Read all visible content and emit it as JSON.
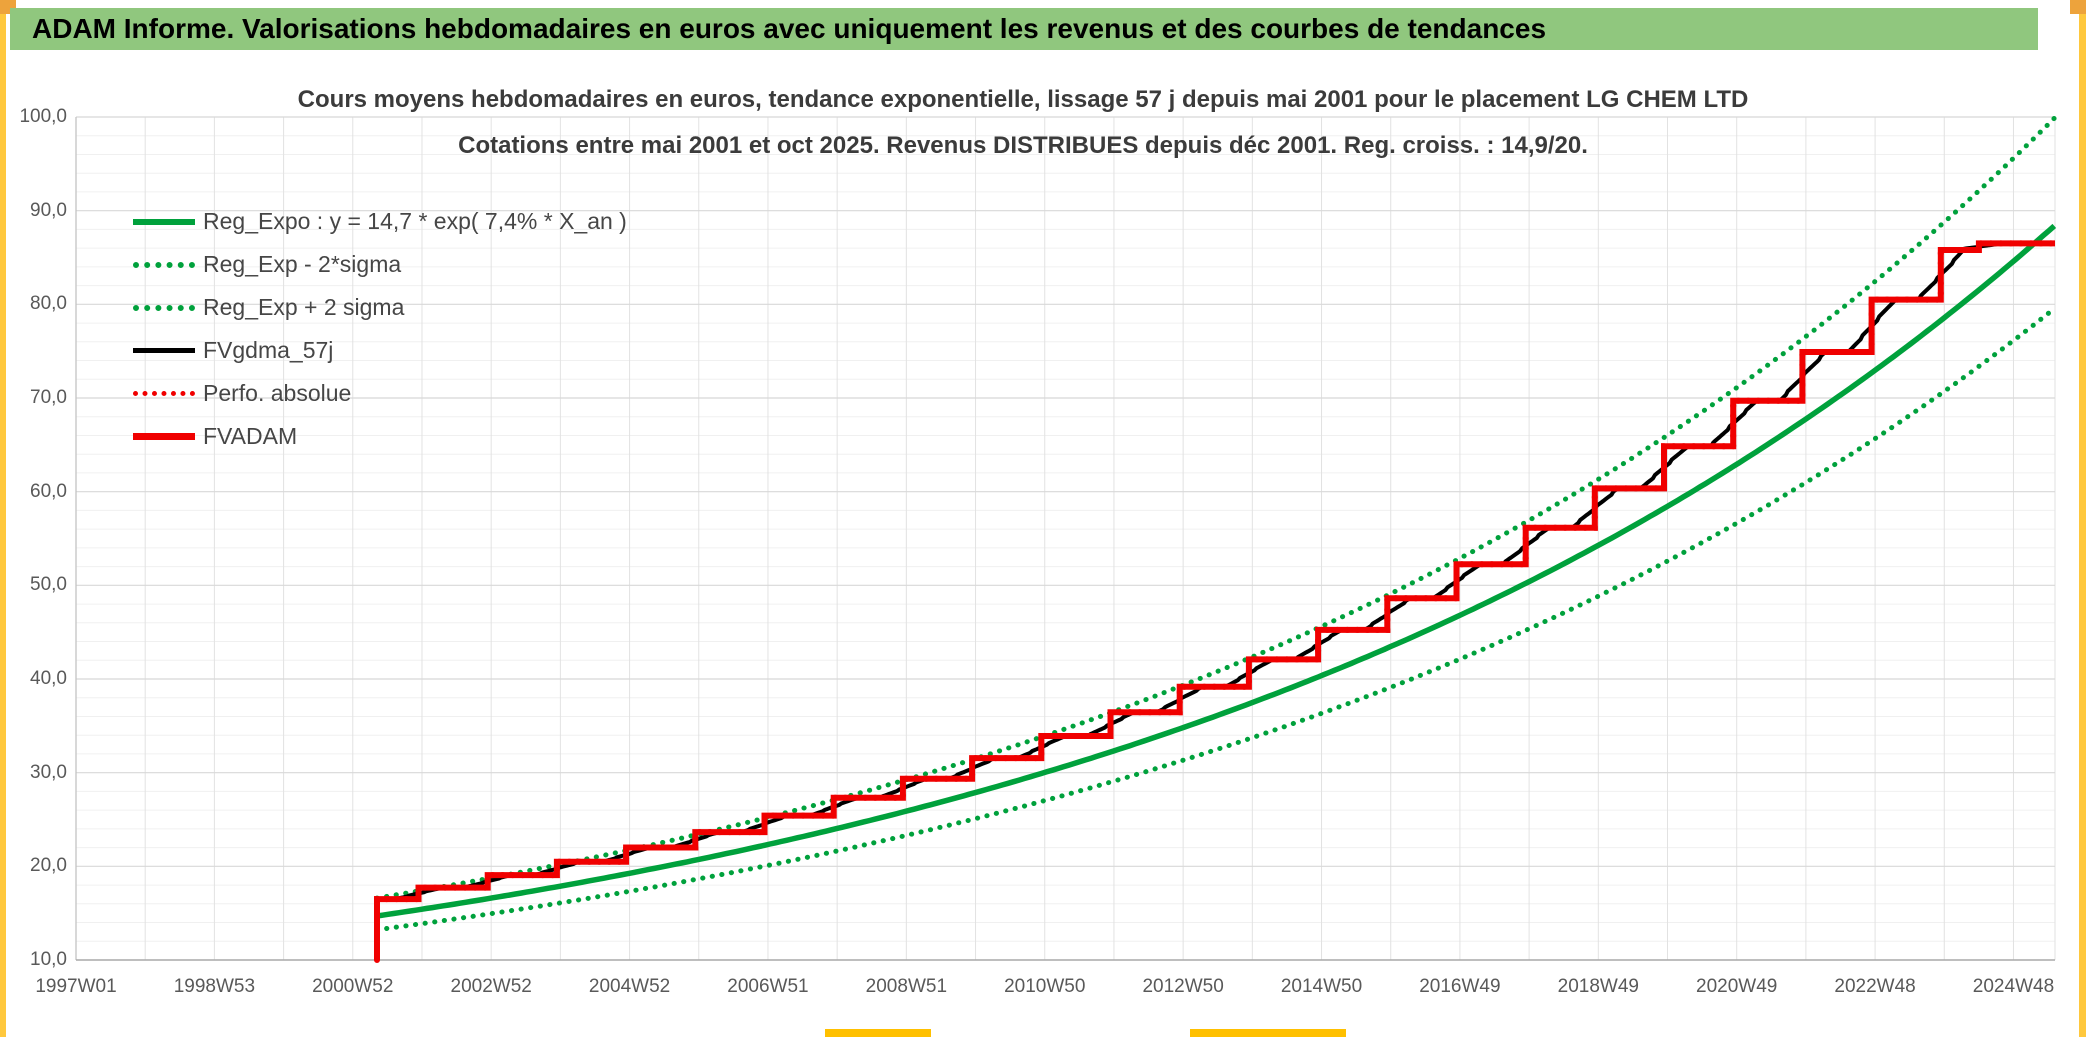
{
  "header": {
    "title": "ADAM Informe. Valorisations hebdomadaires en euros avec uniquement les revenus et des courbes de tendances",
    "bar_color": "#90C77E"
  },
  "frame": {
    "side_strip_color": "#FFC83D",
    "corner_color": "#EDA33C",
    "bottom_segment_color": "#FFC000"
  },
  "chart_data": {
    "type": "line",
    "title": "Cours moyens hebdomadaires en euros, tendance exponentielle, lissage 57 j depuis mai 2001 pour le placement LG CHEM LTD",
    "subtitle": "Cotations entre mai 2001 et oct 2025. Revenus DISTRIBUES depuis déc 2001. Reg. croiss. : 14,9/20.",
    "colors": {
      "green": "#00A13C",
      "red": "#F00000",
      "black": "#000000",
      "grid_major": "#D8D8D8",
      "grid_minor": "#F0F0F0",
      "grid_vertical": "#E2E2E2",
      "axis": "#ABABAB",
      "tick_text": "#595959",
      "title_text": "#3B3B3B"
    },
    "x_axis": {
      "t_min": 1997.0,
      "t_max": 2025.6,
      "tick_years": [
        1997,
        1999,
        2001,
        2003,
        2005,
        2007,
        2009,
        2011,
        2013,
        2015,
        2017,
        2019,
        2021,
        2023,
        2025
      ],
      "tick_labels": [
        "1997W01",
        "1998W53",
        "2000W52",
        "2002W52",
        "2004W52",
        "2006W51",
        "2008W51",
        "2010W50",
        "2012W50",
        "2014W50",
        "2016W49",
        "2018W49",
        "2020W49",
        "2022W48",
        "2024W48"
      ]
    },
    "y_axis": {
      "min": 10,
      "max": 100,
      "major_step": 10,
      "minor_step": 2,
      "tick_values": [
        100,
        90,
        80,
        70,
        60,
        50,
        40,
        30,
        20,
        10
      ],
      "tick_labels": [
        "100,0",
        "90,0",
        "80,0",
        "70,0",
        "60,0",
        "50,0",
        "40,0",
        "30,0",
        "20,0",
        "10,0"
      ]
    },
    "legend": [
      {
        "label": "Reg_Expo : y = 14,7 * exp( 7,4% *  X_an )",
        "swatch": "green-solid"
      },
      {
        "label": "Reg_Exp - 2*sigma",
        "swatch": "green-dot"
      },
      {
        "label": "Reg_Exp + 2 sigma",
        "swatch": "green-dot"
      },
      {
        "label": "FVgdma_57j",
        "swatch": "black-solid"
      },
      {
        "label": "Perfo. absolue",
        "swatch": "red-dot"
      },
      {
        "label": "FVADAM",
        "swatch": "red-solid"
      }
    ],
    "regression": {
      "formula_display": "y = 14,7 * exp( 7,4% * X_an )",
      "a": 14.7,
      "rate": 0.074,
      "t_start": 2001.35,
      "band_upper_factor": 1.13,
      "band_lower_factor": 0.9
    },
    "staircase": {
      "t_start": 2001.35,
      "base_from": 10.0,
      "start_value": 16.5,
      "end_value": 86.51,
      "smooth_window_years": 0.32,
      "jumps": [
        {
          "t": 2001.95,
          "v": 17.73
        },
        {
          "t": 2002.95,
          "v": 19.06
        },
        {
          "t": 2003.95,
          "v": 20.48
        },
        {
          "t": 2004.95,
          "v": 22.01
        },
        {
          "t": 2005.95,
          "v": 23.65
        },
        {
          "t": 2006.95,
          "v": 25.42
        },
        {
          "t": 2007.95,
          "v": 27.32
        },
        {
          "t": 2008.95,
          "v": 29.36
        },
        {
          "t": 2009.95,
          "v": 31.56
        },
        {
          "t": 2010.95,
          "v": 33.91
        },
        {
          "t": 2011.95,
          "v": 36.45
        },
        {
          "t": 2012.95,
          "v": 39.17
        },
        {
          "t": 2013.95,
          "v": 42.09
        },
        {
          "t": 2014.95,
          "v": 45.24
        },
        {
          "t": 2015.95,
          "v": 48.62
        },
        {
          "t": 2016.95,
          "v": 52.25
        },
        {
          "t": 2017.95,
          "v": 56.15
        },
        {
          "t": 2018.95,
          "v": 60.35
        },
        {
          "t": 2019.95,
          "v": 64.85
        },
        {
          "t": 2020.95,
          "v": 69.7
        },
        {
          "t": 2021.95,
          "v": 74.91
        },
        {
          "t": 2022.95,
          "v": 80.5
        },
        {
          "t": 2023.95,
          "v": 85.8
        },
        {
          "t": 2024.5,
          "v": 86.51
        }
      ]
    }
  }
}
